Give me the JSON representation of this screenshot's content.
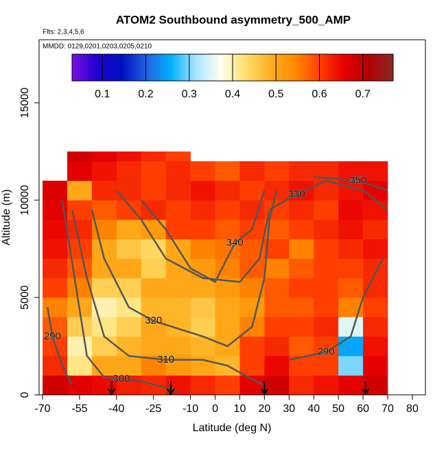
{
  "chart_data": {
    "type": "heatmap",
    "title": "ATOM2 Southbound asymmetry_500_AMP",
    "subtitle": "Flts: 2,3,4,5,6",
    "annotation": "MMDD: 0129,0201,0203,0205,0210",
    "x_label": "Latitude (deg N)",
    "y_label": "Altitude (m)",
    "xlim": [
      -71.4,
      85.3
    ],
    "ylim": [
      0,
      18240
    ],
    "xticks": [
      -70,
      -55,
      -40,
      -25,
      -10,
      0,
      10,
      20,
      30,
      40,
      50,
      60,
      70,
      80
    ],
    "yticks": [
      0,
      5000,
      10000,
      15000
    ],
    "clim": [
      0.03,
      0.77
    ],
    "cticks": [
      0.1,
      0.2,
      0.3,
      0.4,
      0.5,
      0.6,
      0.7
    ],
    "colors": [
      "#7a10e0",
      "#2000d0",
      "#0010c0",
      "#2060e0",
      "#00b0ff",
      "#a8e4ff",
      "#fffff0",
      "#ffe070",
      "#ffb020",
      "#ff8c00",
      "#ff4000",
      "#e80000",
      "#b00000",
      "#8a2a2a"
    ],
    "x_edges": [
      -70,
      -60,
      -50,
      -40,
      -30,
      -20,
      -10,
      0,
      10,
      20,
      30,
      40,
      50,
      60,
      70
    ],
    "y_edges": [
      0,
      1000,
      2000,
      3000,
      4000,
      5000,
      6000,
      7000,
      8000,
      9000,
      10000,
      11000,
      12000,
      12500
    ],
    "z": [
      [
        0.68,
        0.66,
        0.65,
        0.63,
        0.62,
        0.64,
        0.62,
        0.6,
        0.66,
        0.68,
        0.62,
        0.64,
        0.66,
        0.68
      ],
      [
        0.62,
        0.42,
        0.5,
        0.5,
        0.55,
        0.52,
        0.5,
        0.48,
        0.6,
        0.65,
        0.6,
        0.6,
        0.3,
        0.66
      ],
      [
        0.6,
        0.4,
        0.45,
        0.48,
        0.5,
        0.5,
        0.48,
        0.5,
        0.6,
        0.62,
        0.58,
        0.6,
        0.25,
        0.64
      ],
      [
        0.58,
        0.45,
        0.42,
        0.45,
        0.5,
        0.48,
        0.45,
        0.5,
        0.55,
        0.6,
        0.6,
        0.62,
        0.35,
        0.62
      ],
      [
        0.55,
        0.5,
        0.4,
        0.42,
        0.48,
        0.48,
        0.46,
        0.5,
        0.52,
        0.58,
        0.58,
        0.6,
        0.55,
        0.6
      ],
      [
        0.6,
        0.55,
        0.45,
        0.45,
        0.5,
        0.5,
        0.5,
        0.52,
        0.55,
        0.58,
        0.6,
        0.6,
        0.58,
        0.62
      ],
      [
        0.62,
        0.58,
        0.5,
        0.5,
        0.45,
        0.5,
        0.52,
        0.55,
        0.58,
        0.55,
        0.58,
        0.6,
        0.6,
        0.62
      ],
      [
        0.64,
        0.6,
        0.5,
        0.46,
        0.44,
        0.5,
        0.55,
        0.56,
        0.58,
        0.6,
        0.55,
        0.6,
        0.62,
        0.64
      ],
      [
        0.65,
        0.62,
        0.55,
        0.5,
        0.52,
        0.6,
        0.6,
        0.58,
        0.6,
        0.58,
        0.6,
        0.62,
        0.64,
        0.62
      ],
      [
        0.66,
        0.6,
        0.58,
        0.6,
        0.62,
        0.6,
        0.62,
        0.6,
        0.62,
        0.6,
        0.62,
        0.6,
        0.65,
        0.64
      ],
      [
        0.67,
        0.5,
        0.62,
        0.62,
        0.6,
        0.62,
        0.64,
        0.62,
        0.6,
        0.62,
        0.64,
        0.62,
        0.64,
        0.66
      ],
      [
        null,
        0.66,
        0.64,
        0.62,
        0.6,
        0.62,
        0.6,
        0.58,
        0.62,
        0.6,
        0.62,
        0.62,
        0.64,
        0.64
      ],
      [
        null,
        0.68,
        0.66,
        0.64,
        0.62,
        0.6,
        null,
        null,
        null,
        null,
        null,
        null,
        null,
        null
      ]
    ],
    "contour_color": "#555555",
    "contours": [
      {
        "level": 290,
        "x": [
          -68,
          -66,
          -62,
          -58
        ],
        "y": [
          4500,
          3000,
          1500,
          500
        ],
        "label_at": 1
      },
      {
        "level": 290,
        "x": [
          30,
          45,
          55,
          60,
          68
        ],
        "y": [
          1800,
          2200,
          3000,
          5000,
          7000
        ],
        "label_at": 1
      },
      {
        "level": 300,
        "x": [
          -62,
          -57,
          -52,
          -45,
          -38,
          -30,
          -15
        ],
        "y": [
          10000,
          6000,
          2000,
          900,
          800,
          700,
          200
        ],
        "label_at": 4
      },
      {
        "level": 310,
        "x": [
          -58,
          -52,
          -45,
          -35,
          -20,
          -5,
          5,
          15,
          20
        ],
        "y": [
          9500,
          6000,
          3000,
          2000,
          1800,
          1800,
          1500,
          800,
          500
        ],
        "label_at": 4
      },
      {
        "level": 320,
        "x": [
          -50,
          -45,
          -35,
          -25,
          -5,
          5,
          15,
          20,
          22,
          25
        ],
        "y": [
          9500,
          7000,
          4500,
          3800,
          3000,
          2500,
          3500,
          6000,
          9000,
          10500
        ],
        "label_at": 3
      },
      {
        "level": 330,
        "x": [
          -40,
          -30,
          -20,
          -5,
          10,
          18,
          22,
          33,
          45,
          60,
          70
        ],
        "y": [
          10500,
          9000,
          7000,
          6000,
          5800,
          7000,
          9500,
          10300,
          11000,
          10500,
          9500
        ],
        "label_at": 7
      },
      {
        "level": 340,
        "x": [
          -30,
          -20,
          -10,
          0,
          8,
          15,
          20
        ],
        "y": [
          10000,
          8500,
          6500,
          5800,
          7800,
          8500,
          10500
        ],
        "label_at": 4
      },
      {
        "level": 350,
        "x": [
          40,
          58,
          70
        ],
        "y": [
          11200,
          11000,
          10500
        ],
        "label_at": 1
      }
    ],
    "flight_markers": [
      -42,
      -18,
      20,
      61
    ]
  }
}
